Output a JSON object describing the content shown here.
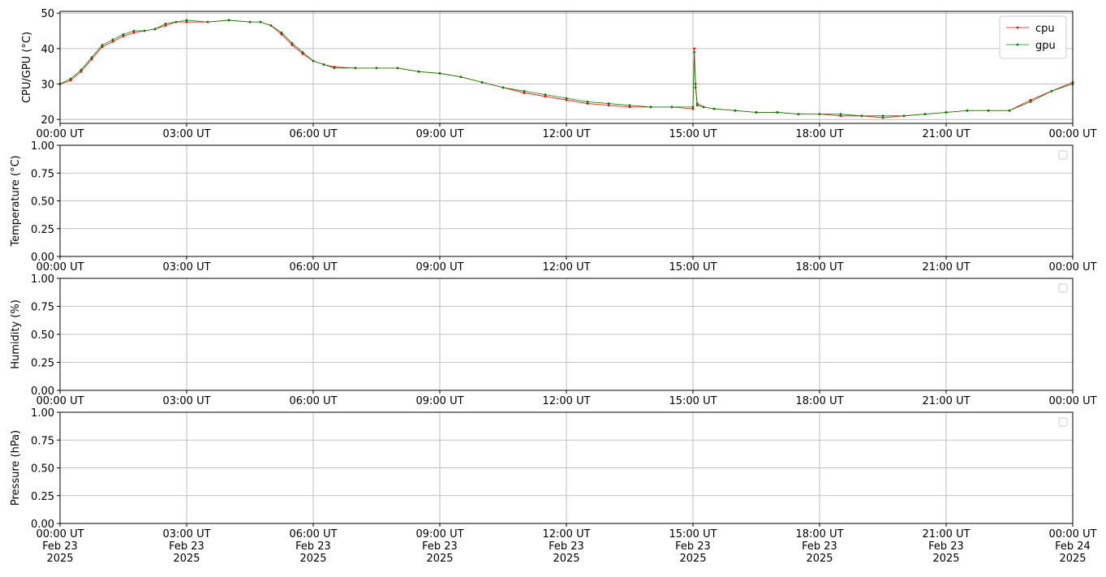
{
  "chart_data": [
    {
      "type": "line",
      "ylabel": "CPU/GPU (°C)",
      "grid": true,
      "legend": "upper right",
      "x": [
        0,
        0.25,
        0.5,
        0.75,
        1,
        1.25,
        1.5,
        1.75,
        2,
        2.25,
        2.5,
        2.75,
        3,
        3.5,
        4,
        4.5,
        4.75,
        5,
        5.25,
        5.5,
        5.75,
        6,
        6.25,
        6.5,
        7,
        7.5,
        8,
        8.5,
        9,
        9.5,
        10,
        10.5,
        11,
        11.5,
        12,
        12.5,
        13,
        13.5,
        14,
        14.5,
        15,
        15.03,
        15.06,
        15.1,
        15.25,
        15.5,
        16,
        16.5,
        17,
        17.5,
        18,
        18.5,
        19,
        19.5,
        20,
        20.5,
        21,
        21.5,
        22,
        22.5,
        23,
        23.5,
        24
      ],
      "series": [
        {
          "name": "cpu",
          "color": "#ff0000",
          "values": [
            30,
            31,
            33.5,
            37,
            40.5,
            42,
            43.5,
            44.5,
            45,
            45.5,
            46.5,
            47.5,
            47.5,
            47.5,
            48,
            47.5,
            47.5,
            46.5,
            44,
            41,
            38.5,
            36.5,
            35.5,
            34.8,
            34.5,
            34.5,
            34.5,
            33.5,
            33,
            32,
            30.5,
            29,
            27.5,
            26.5,
            25.5,
            24.5,
            24,
            23.5,
            23.5,
            23.5,
            23,
            40,
            30,
            24.5,
            23.5,
            23,
            22.5,
            22,
            22,
            21.5,
            21.5,
            21,
            21,
            20.5,
            21,
            21.5,
            22,
            22.5,
            22.5,
            22.5,
            25.5,
            28,
            30.5
          ]
        },
        {
          "name": "gpu",
          "color": "#008000",
          "values": [
            30,
            31.5,
            34,
            37.5,
            41,
            42.5,
            44,
            45,
            45,
            45.5,
            47,
            47.5,
            48,
            47.5,
            48,
            47.5,
            47.5,
            46.5,
            44.5,
            41.5,
            39,
            36.5,
            35.5,
            34.5,
            34.5,
            34.5,
            34.5,
            33.5,
            33,
            32,
            30.5,
            29,
            28,
            27,
            26,
            25,
            24.5,
            24,
            23.5,
            23.5,
            23.5,
            39,
            29,
            24,
            23.5,
            23,
            22.5,
            22,
            22,
            21.5,
            21.5,
            21.5,
            21,
            21,
            21,
            21.5,
            22,
            22.5,
            22.5,
            22.5,
            25,
            28,
            30
          ]
        }
      ],
      "xlim": [
        0,
        24
      ],
      "xticks": [
        {
          "value": 0,
          "label": "00:00 UT"
        },
        {
          "value": 3,
          "label": "03:00 UT"
        },
        {
          "value": 6,
          "label": "06:00 UT"
        },
        {
          "value": 9,
          "label": "09:00 UT"
        },
        {
          "value": 12,
          "label": "12:00 UT"
        },
        {
          "value": 15,
          "label": "15:00 UT"
        },
        {
          "value": 18,
          "label": "18:00 UT"
        },
        {
          "value": 21,
          "label": "21:00 UT"
        },
        {
          "value": 24,
          "label": "00:00 UT"
        }
      ],
      "ylim": [
        18.9,
        50.5
      ],
      "yticks": [
        20,
        30,
        40,
        50
      ]
    },
    {
      "type": "line",
      "ylabel": "Temperature (°C)",
      "grid": true,
      "legend": "upper right",
      "series": [],
      "xlim": [
        0,
        24
      ],
      "xticks": [
        {
          "value": 0,
          "label": "00:00 UT"
        },
        {
          "value": 3,
          "label": "03:00 UT"
        },
        {
          "value": 6,
          "label": "06:00 UT"
        },
        {
          "value": 9,
          "label": "09:00 UT"
        },
        {
          "value": 12,
          "label": "12:00 UT"
        },
        {
          "value": 15,
          "label": "15:00 UT"
        },
        {
          "value": 18,
          "label": "18:00 UT"
        },
        {
          "value": 21,
          "label": "21:00 UT"
        },
        {
          "value": 24,
          "label": "00:00 UT"
        }
      ],
      "ylim": [
        0,
        1
      ],
      "yticks": [
        {
          "value": 0,
          "label": "0.00"
        },
        {
          "value": 0.25,
          "label": "0.25"
        },
        {
          "value": 0.5,
          "label": "0.50"
        },
        {
          "value": 0.75,
          "label": "0.75"
        },
        {
          "value": 1,
          "label": "1.00"
        }
      ]
    },
    {
      "type": "line",
      "ylabel": "Humidity (%)",
      "grid": true,
      "legend": "upper right",
      "series": [],
      "xlim": [
        0,
        24
      ],
      "xticks": [
        {
          "value": 0,
          "label": "00:00 UT"
        },
        {
          "value": 3,
          "label": "03:00 UT"
        },
        {
          "value": 6,
          "label": "06:00 UT"
        },
        {
          "value": 9,
          "label": "09:00 UT"
        },
        {
          "value": 12,
          "label": "12:00 UT"
        },
        {
          "value": 15,
          "label": "15:00 UT"
        },
        {
          "value": 18,
          "label": "18:00 UT"
        },
        {
          "value": 21,
          "label": "21:00 UT"
        },
        {
          "value": 24,
          "label": "00:00 UT"
        }
      ],
      "ylim": [
        0,
        1
      ],
      "yticks": [
        {
          "value": 0,
          "label": "0.00"
        },
        {
          "value": 0.25,
          "label": "0.25"
        },
        {
          "value": 0.5,
          "label": "0.50"
        },
        {
          "value": 0.75,
          "label": "0.75"
        },
        {
          "value": 1,
          "label": "1.00"
        }
      ]
    },
    {
      "type": "line",
      "ylabel": "Pressure (hPa)",
      "grid": true,
      "legend": "upper right",
      "series": [],
      "xlim": [
        0,
        24
      ],
      "xticks": [
        {
          "value": 0,
          "label": "00:00 UT\nFeb 23\n2025"
        },
        {
          "value": 3,
          "label": "03:00 UT\nFeb 23\n2025"
        },
        {
          "value": 6,
          "label": "06:00 UT\nFeb 23\n2025"
        },
        {
          "value": 9,
          "label": "09:00 UT\nFeb 23\n2025"
        },
        {
          "value": 12,
          "label": "12:00 UT\nFeb 23\n2025"
        },
        {
          "value": 15,
          "label": "15:00 UT\nFeb 23\n2025"
        },
        {
          "value": 18,
          "label": "18:00 UT\nFeb 23\n2025"
        },
        {
          "value": 21,
          "label": "21:00 UT\nFeb 23\n2025"
        },
        {
          "value": 24,
          "label": "00:00 UT\nFeb 24\n2025"
        }
      ],
      "ylim": [
        0,
        1
      ],
      "yticks": [
        {
          "value": 0,
          "label": "0.00"
        },
        {
          "value": 0.25,
          "label": "0.25"
        },
        {
          "value": 0.5,
          "label": "0.50"
        },
        {
          "value": 0.75,
          "label": "0.75"
        },
        {
          "value": 1,
          "label": "1.00"
        }
      ]
    }
  ]
}
